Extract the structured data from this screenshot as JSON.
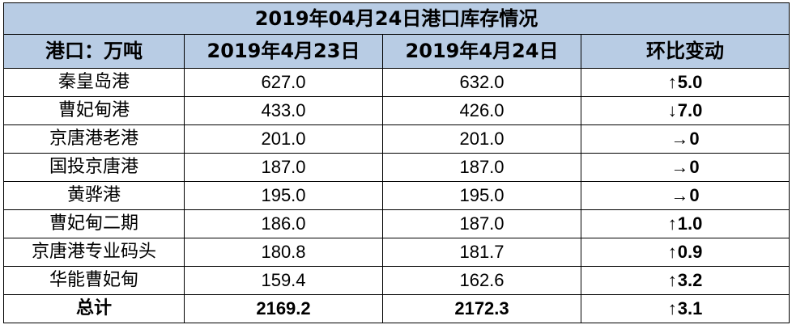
{
  "title": "2019年04月24日港口库存情况",
  "headers": [
    "港口：万吨",
    "2019年4月23日",
    "2019年4月24日",
    "环比变动"
  ],
  "colors": {
    "header_bg": "#b8cce4",
    "up": "#ff0000",
    "down": "#33dd22",
    "flat": "#000000"
  },
  "rows": [
    {
      "port": "秦皇岛港",
      "apr23": "627.0",
      "apr24": "632.0",
      "arrow": "↑",
      "change": "5.0",
      "dir": "up"
    },
    {
      "port": "曹妃甸港",
      "apr23": "433.0",
      "apr24": "426.0",
      "arrow": "↓",
      "change": "7.0",
      "dir": "down"
    },
    {
      "port": "京唐港老港",
      "apr23": "201.0",
      "apr24": "201.0",
      "arrow": "→",
      "change": "0",
      "dir": "flat"
    },
    {
      "port": "国投京唐港",
      "apr23": "187.0",
      "apr24": "187.0",
      "arrow": "→",
      "change": "0",
      "dir": "flat"
    },
    {
      "port": "黄骅港",
      "apr23": "195.0",
      "apr24": "195.0",
      "arrow": "→",
      "change": "0",
      "dir": "flat"
    },
    {
      "port": "曹妃甸二期",
      "apr23": "186.0",
      "apr24": "187.0",
      "arrow": "↑",
      "change": "1.0",
      "dir": "up"
    },
    {
      "port": "京唐港专业码头",
      "apr23": "180.8",
      "apr24": "181.7",
      "arrow": "↑",
      "change": "0.9",
      "dir": "up"
    },
    {
      "port": "华能曹妃甸",
      "apr23": "159.4",
      "apr24": "162.6",
      "arrow": "↑",
      "change": "3.2",
      "dir": "up"
    }
  ],
  "total": {
    "port": "总计",
    "apr23": "2169.2",
    "apr24": "2172.3",
    "arrow": "↑",
    "change": "3.1",
    "dir": "up"
  }
}
